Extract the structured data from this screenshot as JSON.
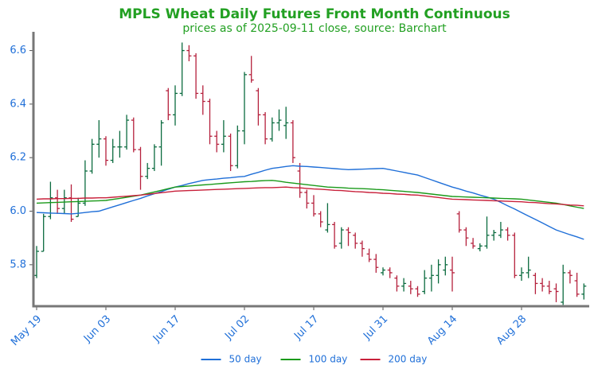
{
  "chart_data": {
    "type": "ohlc",
    "title": "MPLS Wheat Daily Futures Front Month Continuous",
    "subtitle": "prices as of 2025-09-11 close, source: Barchart",
    "categories": [
      "May 19",
      "May 20",
      "May 21",
      "May 22",
      "May 23",
      "May 27",
      "May 28",
      "May 29",
      "May 30",
      "Jun 02",
      "Jun 03",
      "Jun 04",
      "Jun 05",
      "Jun 06",
      "Jun 09",
      "Jun 10",
      "Jun 11",
      "Jun 12",
      "Jun 13",
      "Jun 16",
      "Jun 17",
      "Jun 18",
      "Jun 20",
      "Jun 23",
      "Jun 24",
      "Jun 25",
      "Jun 26",
      "Jun 27",
      "Jun 30",
      "Jul 01",
      "Jul 02",
      "Jul 03",
      "Jul 07",
      "Jul 08",
      "Jul 09",
      "Jul 10",
      "Jul 11",
      "Jul 14",
      "Jul 15",
      "Jul 16",
      "Jul 17",
      "Jul 18",
      "Jul 21",
      "Jul 22",
      "Jul 23",
      "Jul 24",
      "Jul 25",
      "Jul 28",
      "Jul 29",
      "Jul 30",
      "Jul 31",
      "Aug 01",
      "Aug 04",
      "Aug 05",
      "Aug 06",
      "Aug 07",
      "Aug 08",
      "Aug 11",
      "Aug 12",
      "Aug 13",
      "Aug 14",
      "Aug 15",
      "Aug 18",
      "Aug 19",
      "Aug 20",
      "Aug 21",
      "Aug 22",
      "Aug 25",
      "Aug 26",
      "Aug 27",
      "Aug 28",
      "Aug 29",
      "Sep 02",
      "Sep 03",
      "Sep 04",
      "Sep 05",
      "Sep 08",
      "Sep 09",
      "Sep 10",
      "Sep 11"
    ],
    "ohlc": {
      "open": [
        5.76,
        5.85,
        5.98,
        6.05,
        6.01,
        6.05,
        5.98,
        6.03,
        6.15,
        6.25,
        6.27,
        6.19,
        6.24,
        6.24,
        6.34,
        6.23,
        6.13,
        6.16,
        6.24,
        6.45,
        6.36,
        6.44,
        6.6,
        6.58,
        6.44,
        6.41,
        6.28,
        6.25,
        6.28,
        6.17,
        6.3,
        6.51,
        6.45,
        6.36,
        6.27,
        6.33,
        6.32,
        6.33,
        6.15,
        6.07,
        6.03,
        5.99,
        5.93,
        5.95,
        5.88,
        5.93,
        5.91,
        5.88,
        5.84,
        5.82,
        5.77,
        5.78,
        5.75,
        5.72,
        5.72,
        5.71,
        5.7,
        5.75,
        5.76,
        5.78,
        5.78,
        5.99,
        5.93,
        5.88,
        5.86,
        5.87,
        5.91,
        5.91,
        5.93,
        5.91,
        5.76,
        5.77,
        5.76,
        5.73,
        5.72,
        5.71,
        5.66,
        5.77,
        5.74,
        5.69
      ],
      "high": [
        5.87,
        5.99,
        6.11,
        6.08,
        6.08,
        6.1,
        6.05,
        6.19,
        6.27,
        6.34,
        6.28,
        6.27,
        6.3,
        6.36,
        6.35,
        6.24,
        6.18,
        6.25,
        6.34,
        6.46,
        6.47,
        6.63,
        6.62,
        6.59,
        6.47,
        6.42,
        6.3,
        6.34,
        6.29,
        6.32,
        6.52,
        6.58,
        6.46,
        6.37,
        6.35,
        6.38,
        6.39,
        6.34,
        6.18,
        6.08,
        6.06,
        6.0,
        6.03,
        5.96,
        5.94,
        5.94,
        5.92,
        5.89,
        5.86,
        5.84,
        5.79,
        5.79,
        5.76,
        5.75,
        5.74,
        5.72,
        5.78,
        5.8,
        5.82,
        5.83,
        5.83,
        6.0,
        5.94,
        5.9,
        5.88,
        5.98,
        5.93,
        5.96,
        5.94,
        5.92,
        5.79,
        5.83,
        5.77,
        5.75,
        5.74,
        5.73,
        5.8,
        5.78,
        5.77,
        5.73
      ],
      "low": [
        5.75,
        5.85,
        5.97,
        5.99,
        5.99,
        5.96,
        5.98,
        6.02,
        6.14,
        6.2,
        6.17,
        6.18,
        6.2,
        6.23,
        6.22,
        6.08,
        6.12,
        6.15,
        6.17,
        6.34,
        6.32,
        6.43,
        6.56,
        6.42,
        6.36,
        6.25,
        6.22,
        6.22,
        6.15,
        6.16,
        6.25,
        6.48,
        6.32,
        6.25,
        6.26,
        6.3,
        6.27,
        6.18,
        6.05,
        6.01,
        5.98,
        5.94,
        5.92,
        5.86,
        5.86,
        5.87,
        5.86,
        5.83,
        5.81,
        5.77,
        5.76,
        5.75,
        5.7,
        5.7,
        5.69,
        5.68,
        5.69,
        5.7,
        5.73,
        5.76,
        5.7,
        5.92,
        5.87,
        5.86,
        5.85,
        5.86,
        5.89,
        5.9,
        5.89,
        5.75,
        5.74,
        5.75,
        5.69,
        5.7,
        5.69,
        5.66,
        5.65,
        5.73,
        5.68,
        5.67
      ],
      "close": [
        5.85,
        5.98,
        6.05,
        6.01,
        6.05,
        5.97,
        6.03,
        6.15,
        6.25,
        6.27,
        6.19,
        6.24,
        6.24,
        6.34,
        6.23,
        6.13,
        6.16,
        6.24,
        6.33,
        6.36,
        6.44,
        6.6,
        6.58,
        6.44,
        6.41,
        6.28,
        6.25,
        6.28,
        6.17,
        6.3,
        6.51,
        6.49,
        6.36,
        6.27,
        6.33,
        6.34,
        6.33,
        6.2,
        6.07,
        6.03,
        5.99,
        5.96,
        5.95,
        5.87,
        5.93,
        5.92,
        5.88,
        5.86,
        5.82,
        5.79,
        5.78,
        5.77,
        5.72,
        5.73,
        5.71,
        5.69,
        5.75,
        5.76,
        5.8,
        5.8,
        5.77,
        5.93,
        5.9,
        5.87,
        5.87,
        5.91,
        5.92,
        5.93,
        5.91,
        5.76,
        5.77,
        5.78,
        5.73,
        5.72,
        5.7,
        5.7,
        5.77,
        5.76,
        5.69,
        5.72
      ]
    },
    "up_color": "#0b6b3f",
    "down_color": "#b5203c",
    "series": [
      {
        "name": "50 day",
        "color": "#1f6fd8",
        "values": [
          5.995,
          5.994,
          5.993,
          5.992,
          5.991,
          5.99,
          5.992,
          5.995,
          5.998,
          6.0,
          6.008,
          6.016,
          6.024,
          6.032,
          6.04,
          6.048,
          6.057,
          6.065,
          6.073,
          6.082,
          6.09,
          6.096,
          6.103,
          6.109,
          6.115,
          6.118,
          6.12,
          6.123,
          6.125,
          6.128,
          6.13,
          6.138,
          6.145,
          6.153,
          6.16,
          6.163,
          6.167,
          6.17,
          6.168,
          6.167,
          6.165,
          6.163,
          6.161,
          6.159,
          6.157,
          6.155,
          6.156,
          6.157,
          6.158,
          6.159,
          6.16,
          6.155,
          6.15,
          6.145,
          6.14,
          6.135,
          6.126,
          6.117,
          6.108,
          6.099,
          6.09,
          6.083,
          6.075,
          6.068,
          6.06,
          6.053,
          6.045,
          6.033,
          6.02,
          6.008,
          5.995,
          5.982,
          5.969,
          5.956,
          5.943,
          5.93,
          5.921,
          5.912,
          5.904,
          5.895
        ]
      },
      {
        "name": "100 day",
        "color": "#1a9a1a",
        "values": [
          6.03,
          6.031,
          6.032,
          6.033,
          6.034,
          6.035,
          6.036,
          6.037,
          6.038,
          6.039,
          6.04,
          6.044,
          6.048,
          6.052,
          6.056,
          6.06,
          6.066,
          6.072,
          6.078,
          6.084,
          6.09,
          6.092,
          6.094,
          6.096,
          6.098,
          6.1,
          6.102,
          6.104,
          6.106,
          6.108,
          6.11,
          6.111,
          6.113,
          6.114,
          6.115,
          6.112,
          6.108,
          6.105,
          6.102,
          6.099,
          6.096,
          6.093,
          6.09,
          6.089,
          6.088,
          6.086,
          6.085,
          6.084,
          6.083,
          6.081,
          6.08,
          6.078,
          6.076,
          6.074,
          6.072,
          6.07,
          6.067,
          6.064,
          6.061,
          6.058,
          6.055,
          6.054,
          6.053,
          6.052,
          6.051,
          6.05,
          6.049,
          6.048,
          6.047,
          6.046,
          6.045,
          6.042,
          6.039,
          6.036,
          6.033,
          6.03,
          6.025,
          6.02,
          6.015,
          6.01
        ]
      },
      {
        "name": "200 day",
        "color": "#c8203a",
        "values": [
          6.045,
          6.046,
          6.046,
          6.047,
          6.047,
          6.048,
          6.048,
          6.049,
          6.049,
          6.05,
          6.05,
          6.052,
          6.054,
          6.056,
          6.058,
          6.06,
          6.063,
          6.066,
          6.069,
          6.072,
          6.075,
          6.076,
          6.077,
          6.078,
          6.079,
          6.08,
          6.081,
          6.082,
          6.083,
          6.084,
          6.085,
          6.086,
          6.087,
          6.088,
          6.088,
          6.089,
          6.09,
          6.088,
          6.087,
          6.085,
          6.083,
          6.082,
          6.08,
          6.078,
          6.077,
          6.075,
          6.073,
          6.072,
          6.07,
          6.069,
          6.067,
          6.066,
          6.064,
          6.063,
          6.061,
          6.06,
          6.057,
          6.054,
          6.051,
          6.048,
          6.045,
          6.044,
          6.043,
          6.042,
          6.041,
          6.04,
          6.039,
          6.038,
          6.037,
          6.036,
          6.035,
          6.033,
          6.032,
          6.03,
          6.028,
          6.027,
          6.025,
          6.023,
          6.022,
          6.02
        ]
      }
    ],
    "xticks": [
      "May 19",
      "Jun 03",
      "Jun 17",
      "Jul 02",
      "Jul 17",
      "Jul 31",
      "Aug 14",
      "Aug 28"
    ],
    "ylim": [
      5.645,
      6.67
    ],
    "yticks": [
      {
        "value": 5.8,
        "label": "5.8"
      },
      {
        "value": 6,
        "label": "6.0"
      },
      {
        "value": 6.2,
        "label": "6.2"
      },
      {
        "value": 6.4,
        "label": "6.4"
      },
      {
        "value": 6.6,
        "label": "6.6"
      }
    ],
    "legend": "lower center"
  }
}
